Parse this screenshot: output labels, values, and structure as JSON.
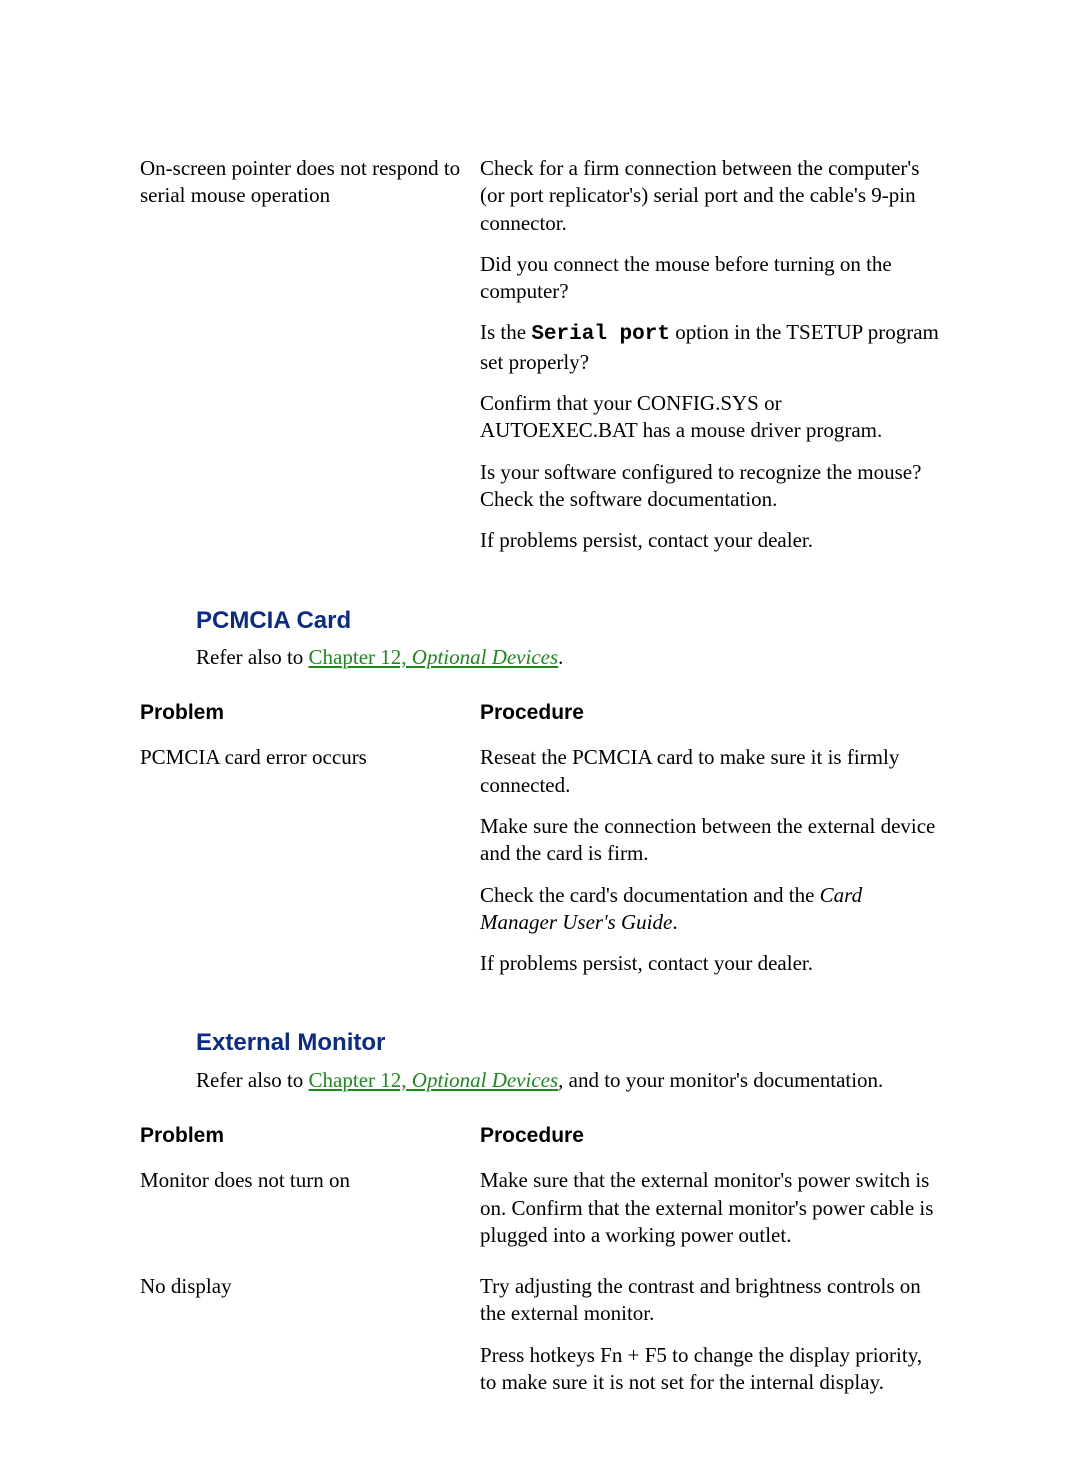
{
  "colors": {
    "heading": "#0a2b8a",
    "link": "#1a8a1a",
    "text": "#000000",
    "background": "#ffffff"
  },
  "typography": {
    "body_font": "Times New Roman",
    "heading_font": "Arial",
    "mono_font": "Courier New",
    "body_size_pt": 16,
    "heading_size_pt": 18
  },
  "topTable": {
    "problem": "On-screen pointer does not respond to serial mouse operation",
    "steps": {
      "s1": "Check for a firm connection between the computer's (or port replicator's) serial port and the cable's 9-pin connector.",
      "s2": "Did you connect the mouse before turning on the computer?",
      "s3a": "Is the ",
      "s3_code": "Serial port",
      "s3b": " option in the TSETUP program set properly?",
      "s4": "Confirm that your CONFIG.SYS or AUTOEXEC.BAT has a mouse driver program.",
      "s5": "Is your software configured to recognize the mouse? Check the software documentation.",
      "s6": "If problems persist, contact your dealer."
    }
  },
  "sections": {
    "pcmcia": {
      "heading": "PCMCIA Card",
      "refer_pre": "Refer also to ",
      "refer_link_plain": "Chapter 12, ",
      "refer_link_italic": "Optional Devices",
      "refer_post": ".",
      "col_problem": "Problem",
      "col_procedure": "Procedure",
      "row1_problem": "PCMCIA card error occurs",
      "row1_steps": {
        "s1": "Reseat the PCMCIA card to make sure it is firmly connected.",
        "s2": "Make sure the connection between the external device and the card is firm.",
        "s3a": "Check the card's documentation and the ",
        "s3_italic": "Card Manager User's Guide",
        "s3b": ".",
        "s4": "If problems persist, contact your dealer."
      }
    },
    "monitor": {
      "heading": "External Monitor",
      "refer_pre": "Refer also to ",
      "refer_link_plain": "Chapter 12, ",
      "refer_link_italic": "Optional Devices",
      "refer_post_italic": ",",
      "refer_post": " and to your monitor's documentation.",
      "col_problem": "Problem",
      "col_procedure": "Procedure",
      "row1_problem": "Monitor does not turn on",
      "row1_step": "Make sure that the external monitor's power switch is on. Confirm that the external monitor's power cable is plugged into a working power outlet.",
      "row2_problem": "No display",
      "row2_steps": {
        "s1": "Try adjusting the contrast and brightness controls on the external monitor.",
        "s2": "Press hotkeys Fn + F5 to change the display priority, to make sure it is not set for the internal display."
      }
    }
  }
}
